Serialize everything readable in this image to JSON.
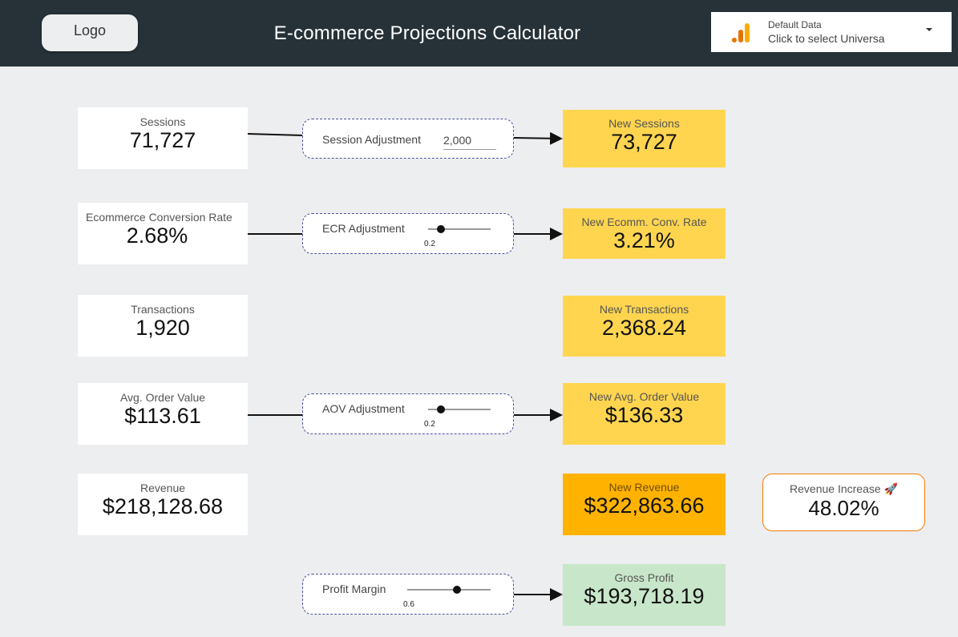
{
  "header": {
    "logo_label": "Logo",
    "title": "E-commerce Projections Calculator",
    "datasource": {
      "line1": "Default Data",
      "line2": "Click to select Universa",
      "icon": "analytics-bars-icon",
      "accent": "#f9ab00"
    }
  },
  "colors": {
    "header_bg": "#263238",
    "page_bg": "#eceef0",
    "projection_yellow": "#ffd54f",
    "revenue_orange": "#ffb300",
    "profit_green": "#c8e6c9",
    "increase_outline": "#f57c00",
    "control_border": "#4a4f9a"
  },
  "baseline": {
    "sessions": {
      "label": "Sessions",
      "value": "71,727"
    },
    "conversion_rate": {
      "label": "Ecommerce Conversion Rate",
      "value": "2.68%"
    },
    "transactions": {
      "label": "Transactions",
      "value": "1,920"
    },
    "aov": {
      "label": "Avg. Order Value",
      "value": "$113.61"
    },
    "revenue": {
      "label": "Revenue",
      "value": "$218,128.68"
    }
  },
  "controls": {
    "session_adjustment": {
      "label": "Session Adjustment",
      "value": "2,000"
    },
    "ecr_adjustment": {
      "label": "ECR Adjustment",
      "value": "0.2",
      "level": 0.2
    },
    "aov_adjustment": {
      "label": "AOV Adjustment",
      "value": "0.2",
      "level": 0.2
    },
    "profit_margin": {
      "label": "Profit Margin",
      "value": "0.6",
      "level": 0.6
    }
  },
  "projections": {
    "new_sessions": {
      "label": "New Sessions",
      "value": "73,727"
    },
    "new_conversion_rate": {
      "label": "New Ecomm. Conv. Rate",
      "value": "3.21%"
    },
    "new_transactions": {
      "label": "New Transactions",
      "value": "2,368.24"
    },
    "new_aov": {
      "label": "New Avg. Order Value",
      "value": "$136.33"
    },
    "new_revenue": {
      "label": "New Revenue",
      "value": "$322,863.66"
    },
    "gross_profit": {
      "label": "Gross Profit",
      "value": "$193,718.19"
    }
  },
  "revenue_increase": {
    "label": "Revenue Increase 🚀",
    "value": "48.02%"
  }
}
